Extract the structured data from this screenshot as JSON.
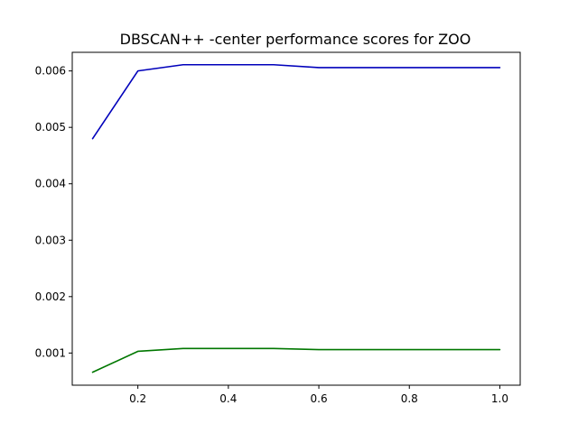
{
  "chart_data": {
    "type": "line",
    "title": "DBSCAN++ -center performance scores for ZOO",
    "xlabel": "",
    "ylabel": "",
    "x": [
      0.1,
      0.2,
      0.3,
      0.4,
      0.5,
      0.6,
      0.7,
      0.8,
      0.9,
      1.0
    ],
    "xlim": [
      0.055,
      1.045
    ],
    "ylim": [
      0.00043,
      0.00633
    ],
    "xticks": [
      0.2,
      0.4,
      0.6,
      0.8,
      1.0
    ],
    "xtick_labels": [
      "0.2",
      "0.4",
      "0.6",
      "0.8",
      "1.0"
    ],
    "yticks": [
      0.001,
      0.002,
      0.003,
      0.004,
      0.005,
      0.006
    ],
    "ytick_labels": [
      "0.001",
      "0.002",
      "0.003",
      "0.004",
      "0.005",
      "0.006"
    ],
    "grid": false,
    "legend": "none",
    "series": [
      {
        "color": "#0000bb",
        "values": [
          0.0048,
          0.006,
          0.00611,
          0.00611,
          0.00611,
          0.00606,
          0.00606,
          0.00606,
          0.00606,
          0.00606
        ]
      },
      {
        "color": "#007700",
        "values": [
          0.00066,
          0.00103,
          0.00108,
          0.00108,
          0.00108,
          0.00106,
          0.00106,
          0.00106,
          0.00106,
          0.00106
        ]
      }
    ]
  }
}
